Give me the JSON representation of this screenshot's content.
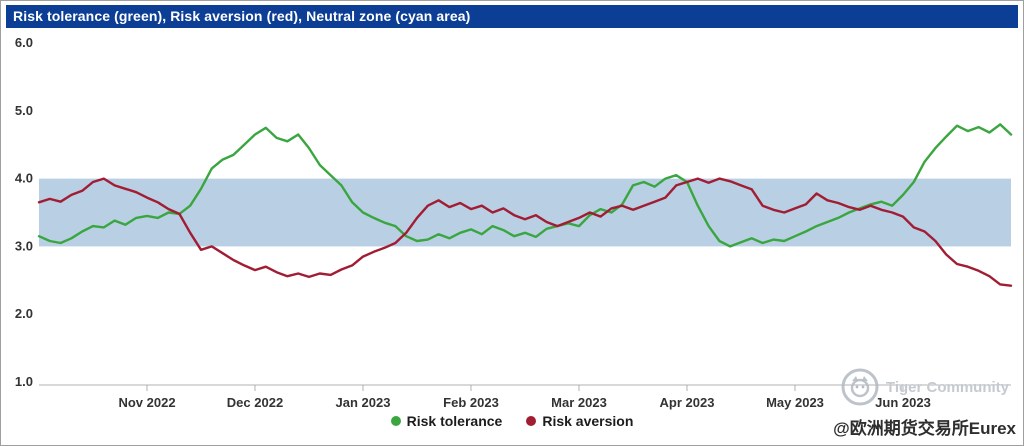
{
  "title_bar": {
    "text": "Risk tolerance (green), Risk aversion (red), Neutral zone (cyan area)",
    "bg_color": "#0c3e96"
  },
  "chart_data": {
    "type": "line",
    "title": "Risk tolerance (green), Risk aversion (red), Neutral zone (cyan area)",
    "xlabel": "",
    "ylabel": "",
    "ylim": [
      1.0,
      6.0
    ],
    "y_tick_labels": [
      "6.0",
      "5.0",
      "4.0",
      "3.0",
      "2.0",
      "1.0"
    ],
    "y_tick_values": [
      6.0,
      5.0,
      4.0,
      3.0,
      2.0,
      1.0
    ],
    "x_domain_months": [
      0,
      9
    ],
    "x_tick_positions": [
      1,
      2,
      3,
      4,
      5,
      6,
      7,
      8
    ],
    "x_tick_labels": [
      "Nov 2022",
      "Dec 2022",
      "Jan 2023",
      "Feb 2023",
      "Mar 2023",
      "Apr 2023",
      "May 2023",
      "Jun 2023"
    ],
    "grid": false,
    "legend_position": "bottom-center",
    "neutral_zone": {
      "label": "Neutral zone",
      "from": 3.0,
      "to": 4.0,
      "color": "#b9cfe4"
    },
    "axis_color": "#b0b0b0",
    "series": [
      {
        "name": "Risk tolerance",
        "color": "#3aa63f",
        "values": [
          3.15,
          3.08,
          3.05,
          3.12,
          3.22,
          3.3,
          3.28,
          3.38,
          3.32,
          3.42,
          3.45,
          3.42,
          3.5,
          3.48,
          3.6,
          3.85,
          4.15,
          4.28,
          4.35,
          4.5,
          4.65,
          4.75,
          4.6,
          4.55,
          4.65,
          4.45,
          4.2,
          4.05,
          3.9,
          3.65,
          3.5,
          3.42,
          3.35,
          3.3,
          3.15,
          3.08,
          3.1,
          3.18,
          3.12,
          3.2,
          3.25,
          3.18,
          3.3,
          3.24,
          3.15,
          3.2,
          3.14,
          3.26,
          3.3,
          3.34,
          3.3,
          3.46,
          3.55,
          3.5,
          3.62,
          3.9,
          3.95,
          3.88,
          4.0,
          4.05,
          3.95,
          3.6,
          3.3,
          3.08,
          3.0,
          3.06,
          3.12,
          3.05,
          3.1,
          3.08,
          3.15,
          3.22,
          3.3,
          3.36,
          3.42,
          3.5,
          3.56,
          3.62,
          3.66,
          3.6,
          3.76,
          3.95,
          4.25,
          4.45,
          4.62,
          4.78,
          4.7,
          4.76,
          4.68,
          4.8,
          4.65
        ]
      },
      {
        "name": "Risk aversion",
        "color": "#a11d33",
        "values": [
          3.65,
          3.7,
          3.66,
          3.76,
          3.82,
          3.95,
          4.0,
          3.9,
          3.85,
          3.8,
          3.72,
          3.65,
          3.55,
          3.48,
          3.2,
          2.95,
          3.0,
          2.9,
          2.8,
          2.72,
          2.65,
          2.7,
          2.62,
          2.56,
          2.6,
          2.55,
          2.6,
          2.58,
          2.66,
          2.72,
          2.85,
          2.92,
          2.98,
          3.05,
          3.2,
          3.42,
          3.6,
          3.68,
          3.58,
          3.64,
          3.55,
          3.6,
          3.5,
          3.56,
          3.46,
          3.4,
          3.46,
          3.36,
          3.3,
          3.36,
          3.42,
          3.5,
          3.44,
          3.56,
          3.6,
          3.54,
          3.6,
          3.66,
          3.72,
          3.9,
          3.95,
          4.0,
          3.94,
          4.0,
          3.96,
          3.9,
          3.84,
          3.6,
          3.54,
          3.5,
          3.56,
          3.62,
          3.78,
          3.68,
          3.64,
          3.58,
          3.54,
          3.6,
          3.54,
          3.5,
          3.44,
          3.28,
          3.22,
          3.08,
          2.88,
          2.74,
          2.7,
          2.64,
          2.56,
          2.44,
          2.42
        ]
      }
    ]
  },
  "watermark": {
    "brand": "Tiger Community",
    "handle": "@欧洲期货交易所Eurex"
  }
}
